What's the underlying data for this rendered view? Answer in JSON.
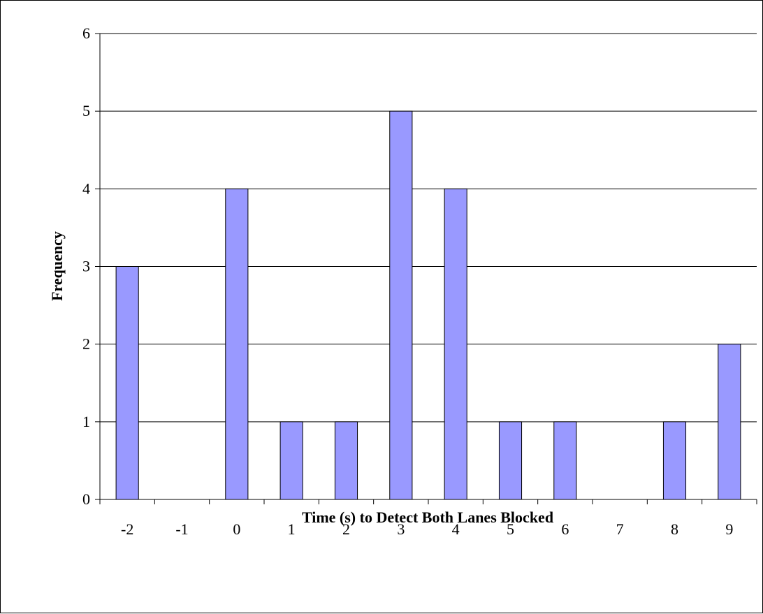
{
  "chart_data": {
    "type": "bar",
    "title": "",
    "xlabel": "Time (s) to Detect Both Lanes Blocked",
    "ylabel": "Frequency",
    "categories": [
      "-2",
      "-1",
      "0",
      "1",
      "2",
      "3",
      "4",
      "5",
      "6",
      "7",
      "8",
      "9"
    ],
    "values": [
      3,
      0,
      4,
      1,
      1,
      5,
      4,
      1,
      1,
      0,
      1,
      2
    ],
    "ylim": [
      0,
      6
    ],
    "yticks": [
      "0",
      "1",
      "2",
      "3",
      "4",
      "5",
      "6"
    ],
    "grid": "horizontal",
    "legend": "none",
    "colors": {
      "bar_fill": "#9999ff",
      "bar_stroke": "#000000",
      "grid": "#000000",
      "axis": "#000000"
    }
  }
}
